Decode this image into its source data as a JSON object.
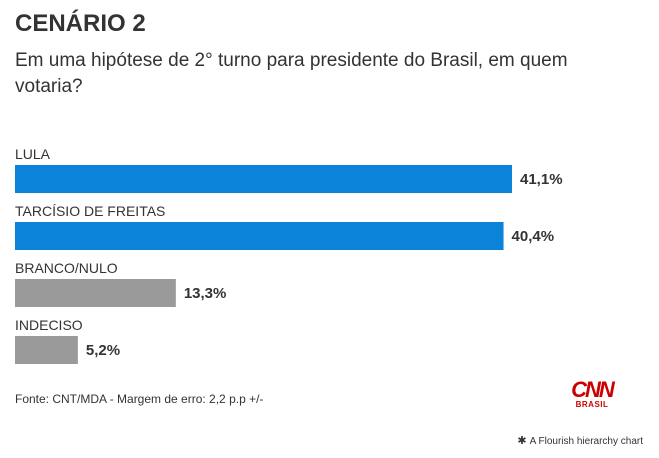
{
  "title": "CENÁRIO 2",
  "subtitle": "Em uma hipótese de 2° turno para presidente do Brasil, em quem votaria?",
  "source": "Fonte: CNT/MDA - Margem de erro: 2,2 p.p +/-",
  "logo": {
    "word": "CNN",
    "sub": "BRASIL"
  },
  "credit": "A Flourish hierarchy chart",
  "colors": {
    "primary": "#0a83d8",
    "secondary": "#9a9a9a",
    "logo": "#cc0000"
  },
  "chart_data": {
    "type": "bar",
    "orientation": "horizontal",
    "title": "CENÁRIO 2",
    "subtitle": "Em uma hipótese de 2° turno para presidente do Brasil, em quem votaria?",
    "categories": [
      "LULA",
      "TARCÍSIO DE FREITAS",
      "BRANCO/NULO",
      "INDECISO"
    ],
    "values": [
      41.1,
      40.4,
      13.3,
      5.2
    ],
    "value_labels": [
      "41,1%",
      "40,4%",
      "13,3%",
      "5,2%"
    ],
    "colors": [
      "#0a83d8",
      "#0a83d8",
      "#9a9a9a",
      "#9a9a9a"
    ],
    "xlim": [
      0,
      41.1
    ],
    "grid": false,
    "legend": "none"
  }
}
